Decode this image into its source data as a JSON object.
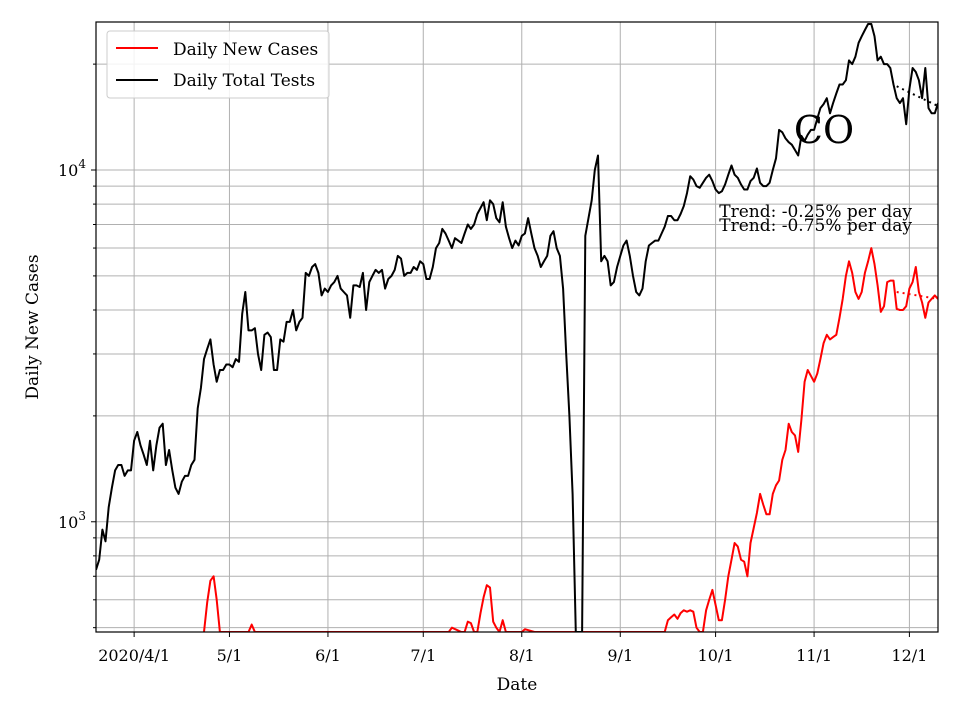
{
  "chart_data": {
    "type": "line",
    "title": "",
    "annotation_label": "CO",
    "xlabel": "Date",
    "ylabel": "Daily New Cases",
    "yscale": "log",
    "grid": true,
    "legend_position": "top-left",
    "x_tick_labels": [
      "2020/4/1",
      "5/1",
      "6/1",
      "7/1",
      "8/1",
      "9/1",
      "10/1",
      "11/1",
      "12/1"
    ],
    "x_tick_dates": [
      "2020-04-01",
      "2020-05-01",
      "2020-06-01",
      "2020-07-01",
      "2020-08-01",
      "2020-09-01",
      "2020-10-01",
      "2020-11-01",
      "2020-12-01"
    ],
    "xlim": [
      "2020-03-20",
      "2020-12-10"
    ],
    "ylim": [
      486,
      26350
    ],
    "y_major_ticks": [
      {
        "value": 1000,
        "base": "10",
        "exp": "3"
      },
      {
        "value": 10000,
        "base": "10",
        "exp": "4"
      }
    ],
    "y_minor_ticks": [
      500,
      600,
      700,
      800,
      900,
      2000,
      3000,
      4000,
      5000,
      6000,
      7000,
      8000,
      9000,
      20000
    ],
    "annotations": [
      {
        "text": "Trend: -0.25% per day"
      },
      {
        "text": "Trend: -0.75% per day"
      }
    ],
    "series": [
      {
        "name": "Daily New Cases",
        "color": "#ff0000",
        "x": [
          "2020-04-23",
          "2020-04-24",
          "2020-04-25",
          "2020-04-26",
          "2020-04-27",
          "2020-04-28",
          "2020-05-07",
          "2020-05-08",
          "2020-05-09",
          "2020-07-09",
          "2020-07-10",
          "2020-07-13",
          "2020-07-14",
          "2020-07-15",
          "2020-07-16",
          "2020-07-17",
          "2020-07-18",
          "2020-07-19",
          "2020-07-20",
          "2020-07-21",
          "2020-07-22",
          "2020-07-23",
          "2020-07-24",
          "2020-07-25",
          "2020-07-26",
          "2020-07-27",
          "2020-07-28",
          "2020-07-29",
          "2020-07-30",
          "2020-07-31",
          "2020-08-01",
          "2020-08-02",
          "2020-08-05",
          "2020-08-06",
          "2020-09-15",
          "2020-09-16",
          "2020-09-17",
          "2020-09-18",
          "2020-09-19",
          "2020-09-20",
          "2020-09-21",
          "2020-09-22",
          "2020-09-23",
          "2020-09-24",
          "2020-09-25",
          "2020-09-26",
          "2020-09-27",
          "2020-09-28",
          "2020-09-29",
          "2020-09-30",
          "2020-10-01",
          "2020-10-02",
          "2020-10-03",
          "2020-10-04",
          "2020-10-05",
          "2020-10-06",
          "2020-10-07",
          "2020-10-08",
          "2020-10-09",
          "2020-10-10",
          "2020-10-11",
          "2020-10-12",
          "2020-10-13",
          "2020-10-14",
          "2020-10-15",
          "2020-10-16",
          "2020-10-17",
          "2020-10-18",
          "2020-10-19",
          "2020-10-20",
          "2020-10-21",
          "2020-10-22",
          "2020-10-23",
          "2020-10-24",
          "2020-10-25",
          "2020-10-26",
          "2020-10-27",
          "2020-10-28",
          "2020-10-29",
          "2020-10-30",
          "2020-10-31",
          "2020-11-01",
          "2020-11-02",
          "2020-11-03",
          "2020-11-04",
          "2020-11-05",
          "2020-11-06",
          "2020-11-07",
          "2020-11-08",
          "2020-11-09",
          "2020-11-10",
          "2020-11-11",
          "2020-11-12",
          "2020-11-13",
          "2020-11-14",
          "2020-11-15",
          "2020-11-16",
          "2020-11-17",
          "2020-11-18",
          "2020-11-19",
          "2020-11-20",
          "2020-11-21",
          "2020-11-22",
          "2020-11-23",
          "2020-11-24",
          "2020-11-25",
          "2020-11-26",
          "2020-11-27",
          "2020-11-28",
          "2020-11-29",
          "2020-11-30",
          "2020-12-01",
          "2020-12-02",
          "2020-12-03",
          "2020-12-04",
          "2020-12-05",
          "2020-12-06",
          "2020-12-07",
          "2020-12-08",
          "2020-12-09",
          "2020-12-10"
        ],
        "values": [
          486,
          590,
          680,
          700,
          600,
          486,
          486,
          510,
          486,
          486,
          500,
          486,
          486,
          520,
          515,
          486,
          486,
          550,
          610,
          660,
          650,
          520,
          500,
          486,
          525,
          486,
          486,
          486,
          486,
          486,
          486,
          495,
          486,
          486,
          486,
          525,
          535,
          545,
          530,
          550,
          560,
          555,
          560,
          555,
          500,
          486,
          486,
          560,
          600,
          640,
          580,
          525,
          525,
          600,
          700,
          780,
          870,
          850,
          780,
          770,
          700,
          870,
          960,
          1060,
          1200,
          1120,
          1050,
          1050,
          1200,
          1270,
          1310,
          1500,
          1600,
          1900,
          1800,
          1760,
          1580,
          1950,
          2500,
          2700,
          2600,
          2500,
          2640,
          2900,
          3220,
          3400,
          3300,
          3350,
          3400,
          3800,
          4300,
          5000,
          5500,
          5100,
          4500,
          4300,
          4500,
          5100,
          5500,
          6000,
          5400,
          4700,
          3950,
          4100,
          4800,
          4850,
          4850,
          4030,
          4000,
          4000,
          4100,
          4600,
          4800,
          5300,
          4500,
          4200,
          3800,
          4200,
          4300,
          4400,
          4300
        ]
      },
      {
        "name": "Daily Total Tests",
        "color": "#000000",
        "x": [
          "2020-03-20",
          "2020-03-21",
          "2020-03-22",
          "2020-03-23",
          "2020-03-24",
          "2020-03-25",
          "2020-03-26",
          "2020-03-27",
          "2020-03-28",
          "2020-03-29",
          "2020-03-30",
          "2020-03-31",
          "2020-04-01",
          "2020-04-02",
          "2020-04-03",
          "2020-04-04",
          "2020-04-05",
          "2020-04-06",
          "2020-04-07",
          "2020-04-08",
          "2020-04-09",
          "2020-04-10",
          "2020-04-11",
          "2020-04-12",
          "2020-04-13",
          "2020-04-14",
          "2020-04-15",
          "2020-04-16",
          "2020-04-17",
          "2020-04-18",
          "2020-04-19",
          "2020-04-20",
          "2020-04-21",
          "2020-04-22",
          "2020-04-23",
          "2020-04-24",
          "2020-04-25",
          "2020-04-26",
          "2020-04-27",
          "2020-04-28",
          "2020-04-29",
          "2020-04-30",
          "2020-05-01",
          "2020-05-02",
          "2020-05-03",
          "2020-05-04",
          "2020-05-05",
          "2020-05-06",
          "2020-05-07",
          "2020-05-08",
          "2020-05-09",
          "2020-05-10",
          "2020-05-11",
          "2020-05-12",
          "2020-05-13",
          "2020-05-14",
          "2020-05-15",
          "2020-05-16",
          "2020-05-17",
          "2020-05-18",
          "2020-05-19",
          "2020-05-20",
          "2020-05-21",
          "2020-05-22",
          "2020-05-23",
          "2020-05-24",
          "2020-05-25",
          "2020-05-26",
          "2020-05-27",
          "2020-05-28",
          "2020-05-29",
          "2020-05-30",
          "2020-05-31",
          "2020-06-01",
          "2020-06-02",
          "2020-06-03",
          "2020-06-04",
          "2020-06-05",
          "2020-06-06",
          "2020-06-07",
          "2020-06-08",
          "2020-06-09",
          "2020-06-10",
          "2020-06-11",
          "2020-06-12",
          "2020-06-13",
          "2020-06-14",
          "2020-06-15",
          "2020-06-16",
          "2020-06-17",
          "2020-06-18",
          "2020-06-19",
          "2020-06-20",
          "2020-06-21",
          "2020-06-22",
          "2020-06-23",
          "2020-06-24",
          "2020-06-25",
          "2020-06-26",
          "2020-06-27",
          "2020-06-28",
          "2020-06-29",
          "2020-06-30",
          "2020-07-01",
          "2020-07-02",
          "2020-07-03",
          "2020-07-04",
          "2020-07-05",
          "2020-07-06",
          "2020-07-07",
          "2020-07-08",
          "2020-07-09",
          "2020-07-10",
          "2020-07-11",
          "2020-07-12",
          "2020-07-13",
          "2020-07-14",
          "2020-07-15",
          "2020-07-16",
          "2020-07-17",
          "2020-07-18",
          "2020-07-19",
          "2020-07-20",
          "2020-07-21",
          "2020-07-22",
          "2020-07-23",
          "2020-07-24",
          "2020-07-25",
          "2020-07-26",
          "2020-07-27",
          "2020-07-28",
          "2020-07-29",
          "2020-07-30",
          "2020-07-31",
          "2020-08-01",
          "2020-08-02",
          "2020-08-03",
          "2020-08-04",
          "2020-08-05",
          "2020-08-06",
          "2020-08-07",
          "2020-08-08",
          "2020-08-09",
          "2020-08-10",
          "2020-08-11",
          "2020-08-12",
          "2020-08-13",
          "2020-08-14",
          "2020-08-15",
          "2020-08-16",
          "2020-08-17",
          "2020-08-18",
          "2020-08-19",
          "2020-08-20",
          "2020-08-21",
          "2020-08-22",
          "2020-08-23",
          "2020-08-24",
          "2020-08-25",
          "2020-08-26",
          "2020-08-27",
          "2020-08-28",
          "2020-08-29",
          "2020-08-30",
          "2020-08-31",
          "2020-09-01",
          "2020-09-02",
          "2020-09-03",
          "2020-09-04",
          "2020-09-05",
          "2020-09-06",
          "2020-09-07",
          "2020-09-08",
          "2020-09-09",
          "2020-09-10",
          "2020-09-11",
          "2020-09-12",
          "2020-09-13",
          "2020-09-14",
          "2020-09-15",
          "2020-09-16",
          "2020-09-17",
          "2020-09-18",
          "2020-09-19",
          "2020-09-20",
          "2020-09-21",
          "2020-09-22",
          "2020-09-23",
          "2020-09-24",
          "2020-09-25",
          "2020-09-26",
          "2020-09-27",
          "2020-09-28",
          "2020-09-29",
          "2020-09-30",
          "2020-10-01",
          "2020-10-02",
          "2020-10-03",
          "2020-10-04",
          "2020-10-05",
          "2020-10-06",
          "2020-10-07",
          "2020-10-08",
          "2020-10-09",
          "2020-10-10",
          "2020-10-11",
          "2020-10-12",
          "2020-10-13",
          "2020-10-14",
          "2020-10-15",
          "2020-10-16",
          "2020-10-17",
          "2020-10-18",
          "2020-10-19",
          "2020-10-20",
          "2020-10-21",
          "2020-10-22",
          "2020-10-23",
          "2020-10-24",
          "2020-10-25",
          "2020-10-26",
          "2020-10-27",
          "2020-10-28",
          "2020-10-29",
          "2020-10-30",
          "2020-10-31",
          "2020-11-01",
          "2020-11-02",
          "2020-11-03",
          "2020-11-04",
          "2020-11-05",
          "2020-11-06",
          "2020-11-07",
          "2020-11-08",
          "2020-11-09",
          "2020-11-10",
          "2020-11-11",
          "2020-11-12",
          "2020-11-13",
          "2020-11-14",
          "2020-11-15",
          "2020-11-16",
          "2020-11-17",
          "2020-11-18",
          "2020-11-19",
          "2020-11-20",
          "2020-11-21",
          "2020-11-22",
          "2020-11-23",
          "2020-11-24",
          "2020-11-25",
          "2020-11-26",
          "2020-11-27",
          "2020-11-28",
          "2020-11-29",
          "2020-11-30",
          "2020-12-01",
          "2020-12-02",
          "2020-12-03",
          "2020-12-04",
          "2020-12-05",
          "2020-12-06",
          "2020-12-07",
          "2020-12-08",
          "2020-12-09",
          "2020-12-10"
        ],
        "values": [
          730,
          780,
          950,
          880,
          1100,
          1250,
          1400,
          1450,
          1450,
          1350,
          1400,
          1400,
          1700,
          1800,
          1650,
          1550,
          1450,
          1700,
          1400,
          1650,
          1850,
          1900,
          1450,
          1600,
          1400,
          1250,
          1200,
          1300,
          1350,
          1350,
          1450,
          1500,
          2100,
          2400,
          2900,
          3100,
          3300,
          2800,
          2500,
          2700,
          2700,
          2800,
          2800,
          2750,
          2900,
          2850,
          3900,
          4500,
          3500,
          3500,
          3550,
          3000,
          2700,
          3400,
          3450,
          3350,
          2700,
          2700,
          3300,
          3250,
          3700,
          3700,
          4000,
          3500,
          3700,
          3800,
          5100,
          5000,
          5300,
          5400,
          5100,
          4400,
          4600,
          4500,
          4700,
          4800,
          5000,
          4600,
          4500,
          4400,
          3800,
          4700,
          4700,
          4650,
          5100,
          4000,
          4800,
          5000,
          5200,
          5100,
          5200,
          4600,
          4900,
          5000,
          5200,
          5700,
          5600,
          5000,
          5100,
          5100,
          5300,
          5200,
          5500,
          5400,
          4900,
          4900,
          5300,
          6000,
          6200,
          6800,
          6600,
          6300,
          6000,
          6400,
          6300,
          6200,
          6600,
          7000,
          6800,
          7000,
          7500,
          7800,
          8100,
          7200,
          8200,
          8000,
          7300,
          7100,
          8100,
          6900,
          6400,
          6000,
          6300,
          6100,
          6500,
          6600,
          7300,
          6600,
          6000,
          5700,
          5300,
          5500,
          5700,
          6500,
          6700,
          6000,
          5700,
          4600,
          3000,
          2000,
          1200,
          486,
          486,
          486,
          6500,
          7300,
          8200,
          10000,
          11000,
          5500,
          5700,
          5500,
          4700,
          4800,
          5300,
          5700,
          6100,
          6300,
          5700,
          5000,
          4500,
          4400,
          4600,
          5500,
          6100,
          6200,
          6300,
          6300,
          6600,
          6900,
          7400,
          7400,
          7200,
          7200,
          7500,
          7900,
          8600,
          9600,
          9400,
          9000,
          8900,
          9200,
          9500,
          9700,
          9300,
          8800,
          8600,
          8700,
          9100,
          9700,
          10300,
          9700,
          9500,
          9100,
          8800,
          8800,
          9300,
          9500,
          10100,
          9200,
          9000,
          9000,
          9200,
          10000,
          10800,
          13000,
          12800,
          12300,
          12000,
          11800,
          11400,
          11000,
          12500,
          12100,
          12600,
          13000,
          13000,
          14000,
          15000,
          15400,
          16000,
          14500,
          15500,
          16500,
          17500,
          17500,
          18000,
          20500,
          20000,
          21000,
          23000,
          24000,
          25000,
          26000,
          26000,
          24000,
          20500,
          21000,
          20000,
          20000,
          19500,
          17500,
          16000,
          15500,
          16000,
          13500,
          17000,
          19500,
          19000,
          18000,
          16000,
          19500,
          15000,
          14500,
          14500,
          15500
        ]
      }
    ],
    "trend_lines": [
      {
        "name": "upper",
        "x": [
          "2020-11-27",
          "2020-12-10"
        ],
        "values": [
          17300,
          15200
        ]
      },
      {
        "name": "lower",
        "x": [
          "2020-11-27",
          "2020-12-10"
        ],
        "values": [
          4500,
          4300
        ]
      }
    ]
  }
}
